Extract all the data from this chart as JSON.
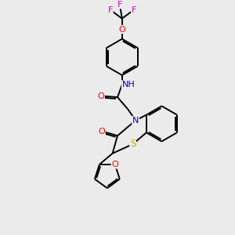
{
  "background_color": "#ebebeb",
  "atom_colors": {
    "C": "#000000",
    "N": "#0000cc",
    "O": "#ff0000",
    "S": "#ccaa00",
    "F": "#cc00cc",
    "H": "#008888"
  },
  "figsize": [
    3.0,
    3.0
  ],
  "dpi": 100
}
